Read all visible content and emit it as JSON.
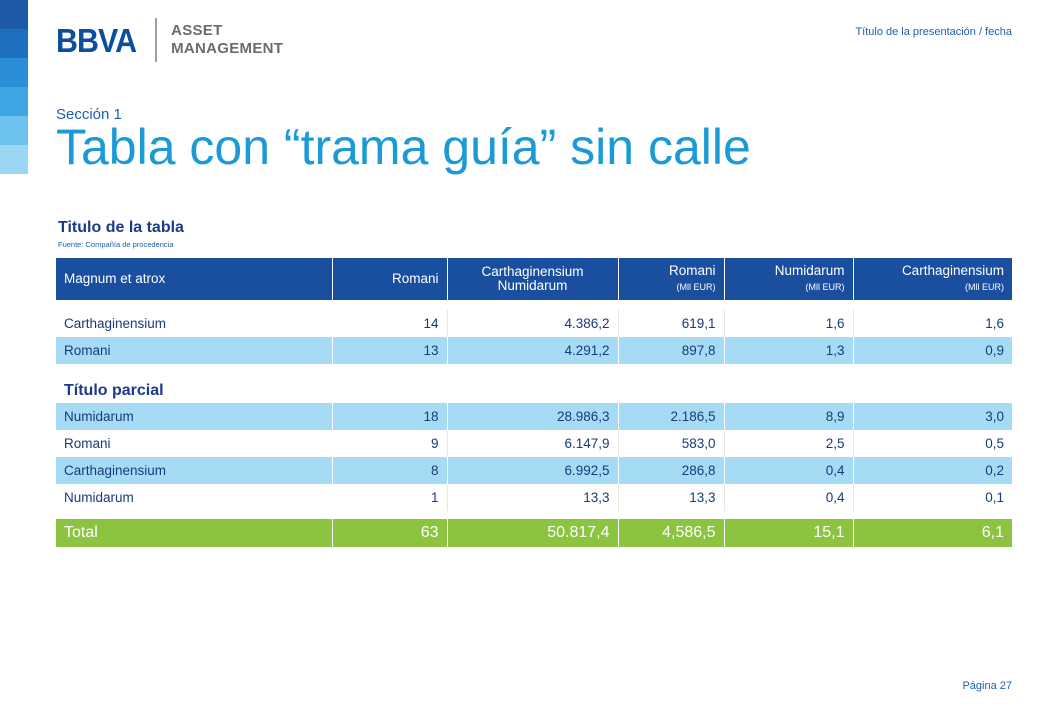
{
  "colors": {
    "strip": [
      "#1c5aa8",
      "#1e6fc0",
      "#2a8fd6",
      "#3ba6e3",
      "#6dc1ee",
      "#9bd6f4"
    ],
    "header_bg": "#1a4fa0",
    "shaded_row": "#a6dbf5",
    "total_row": "#8cc43f",
    "title": "#1c9ad6"
  },
  "logo": {
    "brand": "BBVA",
    "line1": "ASSET",
    "line2": "MANAGEMENT"
  },
  "header_right": "Título de la presentación / fecha",
  "section": "Sección 1",
  "title": "Tabla con “trama guía” sin calle",
  "table_title": "Titulo de la tabla",
  "source": "Fuente: Compañía de procedencia",
  "columns": [
    {
      "main": "Magnum et atrox",
      "sub": ""
    },
    {
      "main": "Romani",
      "sub": ""
    },
    {
      "main": "Carthaginensium Numidarum",
      "sub": ""
    },
    {
      "main": "Romani",
      "sub": "(Mll EUR)"
    },
    {
      "main": "Numidarum",
      "sub": "(Mll EUR)"
    },
    {
      "main": "Carthaginensium",
      "sub": "(Mll EUR)"
    }
  ],
  "group1": [
    [
      "Carthaginensium",
      "14",
      "4.386,2",
      "619,1",
      "1,6",
      "1,6"
    ],
    [
      "Romani",
      "13",
      "4.291,2",
      "897,8",
      "1,3",
      "0,9"
    ]
  ],
  "subtitle": "Título parcial",
  "group2": [
    [
      "Numidarum",
      "18",
      "28.986,3",
      "2.186,5",
      "8,9",
      "3,0"
    ],
    [
      "Romani",
      "9",
      "6.147,9",
      "583,0",
      "2,5",
      "0,5"
    ],
    [
      "Carthaginensium",
      "8",
      "6.992,5",
      "286,8",
      "0,4",
      "0,2"
    ],
    [
      "Numidarum",
      "1",
      "13,3",
      "13,3",
      "0,4",
      "0,1"
    ]
  ],
  "total": [
    "Total",
    "63",
    "50.817,4",
    "4,586,5",
    "15,1",
    "6,1"
  ],
  "page_number": "Página 27"
}
